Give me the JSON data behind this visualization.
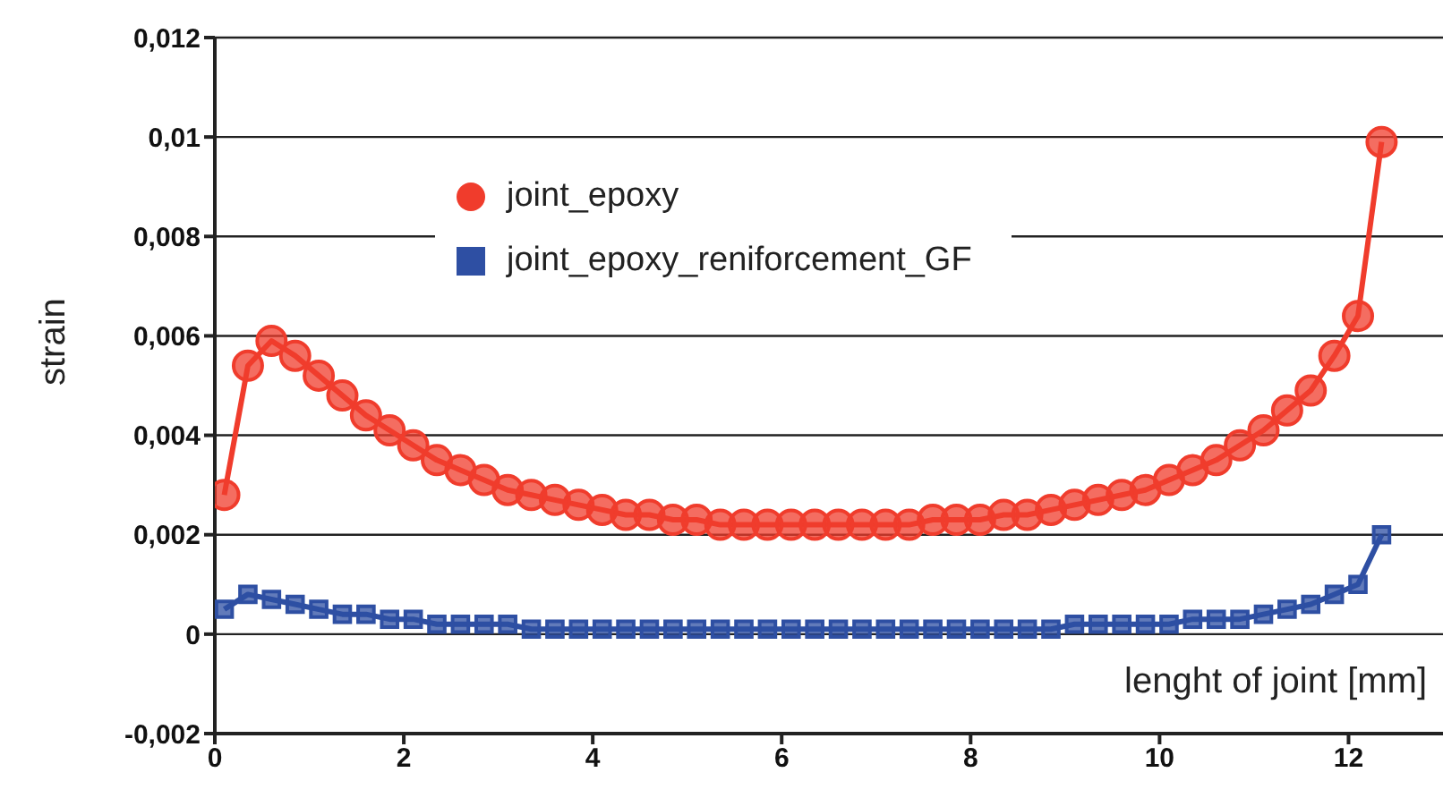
{
  "chart_data": {
    "type": "line",
    "ylabel": "strain",
    "xlabel": "lenght of joint [mm]",
    "x": [
      0.1,
      0.35,
      0.6,
      0.85,
      1.1,
      1.35,
      1.6,
      1.85,
      2.1,
      2.35,
      2.6,
      2.85,
      3.1,
      3.35,
      3.6,
      3.85,
      4.1,
      4.35,
      4.6,
      4.85,
      5.1,
      5.35,
      5.6,
      5.85,
      6.1,
      6.35,
      6.6,
      6.85,
      7.1,
      7.35,
      7.6,
      7.85,
      8.1,
      8.35,
      8.6,
      8.85,
      9.1,
      9.35,
      9.6,
      9.85,
      10.1,
      10.35,
      10.6,
      10.85,
      11.1,
      11.35,
      11.6,
      11.85,
      12.1,
      12.35
    ],
    "series": [
      {
        "name": "joint_epoxy",
        "color": "#f03c2c",
        "marker": "circle",
        "values": [
          0.0028,
          0.0054,
          0.0059,
          0.0056,
          0.0052,
          0.0048,
          0.0044,
          0.0041,
          0.0038,
          0.0035,
          0.0033,
          0.0031,
          0.0029,
          0.0028,
          0.0027,
          0.0026,
          0.0025,
          0.0024,
          0.0024,
          0.0023,
          0.0023,
          0.0022,
          0.0022,
          0.0022,
          0.0022,
          0.0022,
          0.0022,
          0.0022,
          0.0022,
          0.0022,
          0.0023,
          0.0023,
          0.0023,
          0.0024,
          0.0024,
          0.0025,
          0.0026,
          0.0027,
          0.0028,
          0.0029,
          0.0031,
          0.0033,
          0.0035,
          0.0038,
          0.0041,
          0.0045,
          0.0049,
          0.0056,
          0.0064,
          0.0099
        ]
      },
      {
        "name": "joint_epoxy_reniforcement_GF",
        "color": "#2e4fa3",
        "marker": "square",
        "values": [
          0.0005,
          0.0008,
          0.0007,
          0.0006,
          0.0005,
          0.0004,
          0.0004,
          0.0003,
          0.0003,
          0.0002,
          0.0002,
          0.0002,
          0.0002,
          0.0001,
          0.0001,
          0.0001,
          0.0001,
          0.0001,
          0.0001,
          0.0001,
          0.0001,
          0.0001,
          0.0001,
          0.0001,
          0.0001,
          0.0001,
          0.0001,
          0.0001,
          0.0001,
          0.0001,
          0.0001,
          0.0001,
          0.0001,
          0.0001,
          0.0001,
          0.0001,
          0.0002,
          0.0002,
          0.0002,
          0.0002,
          0.0002,
          0.0003,
          0.0003,
          0.0003,
          0.0004,
          0.0005,
          0.0006,
          0.0008,
          0.001,
          0.002
        ]
      }
    ],
    "xlim": [
      0,
      13
    ],
    "xticks": [
      0,
      2,
      4,
      6,
      8,
      10,
      12
    ],
    "ylim": [
      -0.002,
      0.012
    ],
    "yticks": [
      {
        "value": -0.002,
        "label": "-0,002"
      },
      0,
      {
        "value": 0.002,
        "label": "0,002"
      },
      {
        "value": 0.004,
        "label": "0,004"
      },
      {
        "value": 0.006,
        "label": "0,006"
      },
      {
        "value": 0.008,
        "label": "0,008"
      },
      {
        "value": 0.01,
        "label": "0,01"
      },
      {
        "value": 0.012,
        "label": "0,012"
      }
    ],
    "grid": "y",
    "legend": "top"
  }
}
